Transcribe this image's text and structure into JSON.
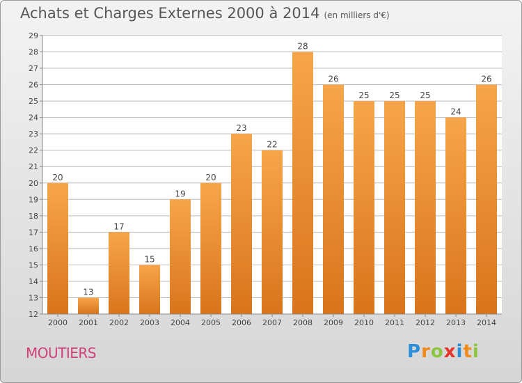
{
  "header": {
    "title": "Achats et Charges Externes 2000 à 2014",
    "subtitle": "(en milliers d'€)"
  },
  "footer": {
    "place": "MOUTIERS",
    "logo_text": "Proxiti",
    "logo_colors": [
      "#2a8fd8",
      "#f08a1c",
      "#8cc63f",
      "#e8332a",
      "#2a8fd8",
      "#f08a1c",
      "#8cc63f"
    ]
  },
  "colors": {
    "bar_light": "#f7a54a",
    "bar_dark": "#d9741c",
    "grid": "#b8b8b8",
    "axis_text": "#444444"
  },
  "chart_data": {
    "type": "bar",
    "title": "Achats et Charges Externes 2000 à 2014",
    "subtitle": "(en milliers d'€)",
    "xlabel": "",
    "ylabel": "",
    "ylim": [
      12,
      29
    ],
    "yticks": [
      12,
      13,
      14,
      15,
      16,
      17,
      18,
      19,
      20,
      21,
      22,
      23,
      24,
      25,
      26,
      27,
      28,
      29
    ],
    "grid": true,
    "categories": [
      "2000",
      "2001",
      "2002",
      "2003",
      "2004",
      "2005",
      "2006",
      "2007",
      "2008",
      "2009",
      "2010",
      "2011",
      "2012",
      "2013",
      "2014"
    ],
    "values": [
      20,
      13,
      17,
      15,
      19,
      20,
      23,
      22,
      28,
      26,
      25,
      25,
      25,
      24,
      26
    ]
  }
}
